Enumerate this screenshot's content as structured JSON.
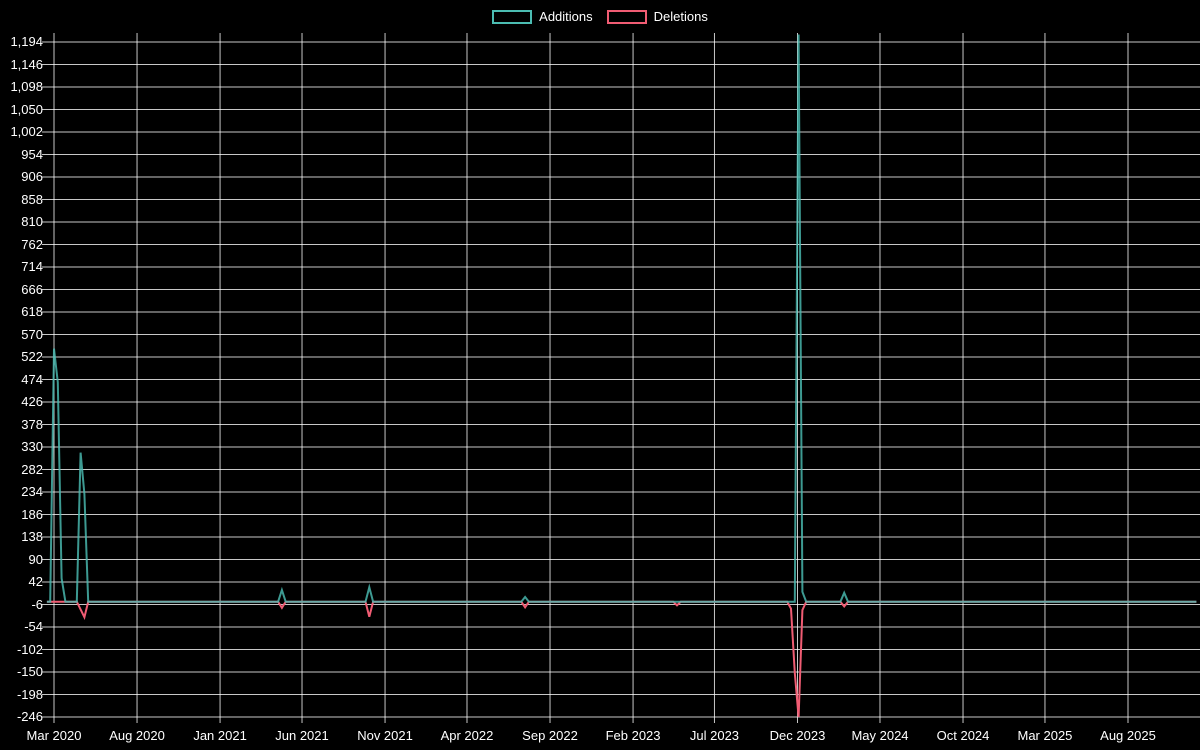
{
  "legend": {
    "items": [
      {
        "label": "Additions",
        "color": "#4bbcb2"
      },
      {
        "label": "Deletions",
        "color": "#f05c73"
      }
    ]
  },
  "chart_data": {
    "type": "line",
    "title": "",
    "xlabel": "",
    "ylabel": "",
    "background_color": "#000000",
    "gridline_color": "rgba(255,255,255,0.78)",
    "text_color": "#ffffff",
    "grid": true,
    "legend_position": "top-center",
    "y_axis": {
      "min": -246,
      "max": 1194,
      "step": 48,
      "tick_labels": [
        "-246",
        "-198",
        "-150",
        "-102",
        "-54",
        "-6",
        "42",
        "90",
        "138",
        "186",
        "234",
        "282",
        "330",
        "378",
        "426",
        "474",
        "522",
        "570",
        "618",
        "666",
        "714",
        "762",
        "810",
        "858",
        "906",
        "954",
        "1,002",
        "1,050",
        "1,098",
        "1,146",
        "1,194"
      ],
      "tick_values": [
        -246,
        -198,
        -150,
        -102,
        -54,
        -6,
        42,
        90,
        138,
        186,
        234,
        282,
        330,
        378,
        426,
        474,
        522,
        570,
        618,
        666,
        714,
        762,
        810,
        858,
        906,
        954,
        1002,
        1050,
        1098,
        1146,
        1194
      ]
    },
    "x_axis": {
      "start": "2020-02-17",
      "end": "2025-12-05",
      "ticks": [
        {
          "date": "2020-03-01",
          "label": "Mar 2020"
        },
        {
          "date": "2020-08-01",
          "label": "Aug 2020"
        },
        {
          "date": "2021-01-01",
          "label": "Jan 2021"
        },
        {
          "date": "2021-06-01",
          "label": "Jun 2021"
        },
        {
          "date": "2021-11-01",
          "label": "Nov 2021"
        },
        {
          "date": "2022-04-01",
          "label": "Apr 2022"
        },
        {
          "date": "2022-09-01",
          "label": "Sep 2022"
        },
        {
          "date": "2023-02-01",
          "label": "Feb 2023"
        },
        {
          "date": "2023-07-01",
          "label": "Jul 2023"
        },
        {
          "date": "2023-12-01",
          "label": "Dec 2023"
        },
        {
          "date": "2024-05-01",
          "label": "May 2024"
        },
        {
          "date": "2024-10-01",
          "label": "Oct 2024"
        },
        {
          "date": "2025-03-01",
          "label": "Mar 2025"
        },
        {
          "date": "2025-08-01",
          "label": "Aug 2025"
        }
      ]
    },
    "series": [
      {
        "name": "Additions",
        "color": "#4bbcb2",
        "baseline": 0,
        "points": [
          [
            "2020-02-23",
            0
          ],
          [
            "2020-03-01",
            540
          ],
          [
            "2020-03-08",
            468
          ],
          [
            "2020-03-15",
            50
          ],
          [
            "2020-03-22",
            0
          ],
          [
            "2020-04-12",
            0
          ],
          [
            "2020-04-19",
            318
          ],
          [
            "2020-04-26",
            230
          ],
          [
            "2020-05-03",
            0
          ],
          [
            "2021-04-18",
            0
          ],
          [
            "2021-04-25",
            25
          ],
          [
            "2021-05-02",
            0
          ],
          [
            "2021-09-26",
            0
          ],
          [
            "2021-10-03",
            31
          ],
          [
            "2021-10-10",
            0
          ],
          [
            "2022-07-10",
            0
          ],
          [
            "2022-07-17",
            10
          ],
          [
            "2022-07-24",
            0
          ],
          [
            "2023-11-26",
            0
          ],
          [
            "2023-12-03",
            1210
          ],
          [
            "2023-12-10",
            21
          ],
          [
            "2023-12-17",
            0
          ],
          [
            "2024-02-18",
            0
          ],
          [
            "2024-02-25",
            19
          ],
          [
            "2024-03-03",
            0
          ]
        ]
      },
      {
        "name": "Deletions",
        "color": "#f05c73",
        "baseline": 0,
        "points": [
          [
            "2020-04-12",
            0
          ],
          [
            "2020-04-26",
            -33
          ],
          [
            "2020-05-03",
            0
          ],
          [
            "2021-04-18",
            0
          ],
          [
            "2021-04-25",
            -13
          ],
          [
            "2021-05-02",
            0
          ],
          [
            "2021-09-26",
            0
          ],
          [
            "2021-10-03",
            -32
          ],
          [
            "2021-10-10",
            0
          ],
          [
            "2022-07-10",
            0
          ],
          [
            "2022-07-17",
            -12
          ],
          [
            "2022-07-24",
            0
          ],
          [
            "2023-04-16",
            0
          ],
          [
            "2023-04-23",
            -8
          ],
          [
            "2023-04-30",
            0
          ],
          [
            "2023-11-12",
            0
          ],
          [
            "2023-11-19",
            -15
          ],
          [
            "2023-11-26",
            -152
          ],
          [
            "2023-12-03",
            -246
          ],
          [
            "2023-12-10",
            -18
          ],
          [
            "2023-12-17",
            0
          ],
          [
            "2024-02-18",
            0
          ],
          [
            "2024-02-25",
            -10
          ],
          [
            "2024-03-03",
            0
          ]
        ]
      }
    ]
  }
}
